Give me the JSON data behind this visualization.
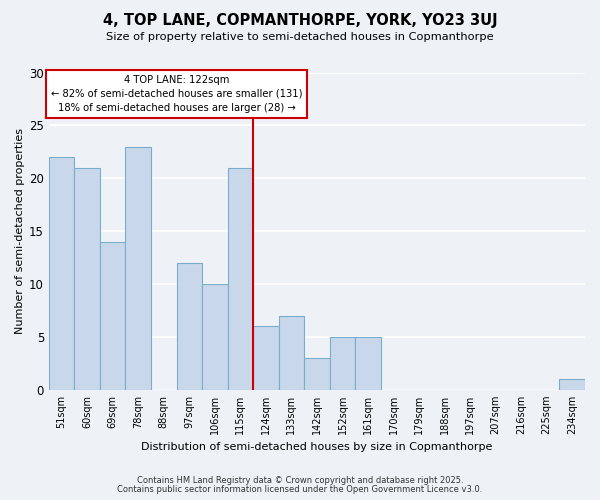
{
  "title": "4, TOP LANE, COPMANTHORPE, YORK, YO23 3UJ",
  "subtitle": "Size of property relative to semi-detached houses in Copmanthorpe",
  "xlabel": "Distribution of semi-detached houses by size in Copmanthorpe",
  "ylabel": "Number of semi-detached properties",
  "categories": [
    "51sqm",
    "60sqm",
    "69sqm",
    "78sqm",
    "88sqm",
    "97sqm",
    "106sqm",
    "115sqm",
    "124sqm",
    "133sqm",
    "142sqm",
    "152sqm",
    "161sqm",
    "170sqm",
    "179sqm",
    "188sqm",
    "197sqm",
    "207sqm",
    "216sqm",
    "225sqm",
    "234sqm"
  ],
  "values": [
    22,
    21,
    14,
    23,
    0,
    12,
    10,
    21,
    6,
    7,
    3,
    5,
    5,
    0,
    0,
    0,
    0,
    0,
    0,
    0,
    1
  ],
  "bar_color": "#c8d8ea",
  "bar_edgecolor": "#7aaccc",
  "vline_color": "#cc0000",
  "annotation_line1": "4 TOP LANE: 122sqm",
  "annotation_line2": "← 82% of semi-detached houses are smaller (131)",
  "annotation_line3": "18% of semi-detached houses are larger (28) →",
  "annotation_box_edgecolor": "#cc0000",
  "annotation_box_facecolor": "#ffffff",
  "ylim": [
    0,
    30
  ],
  "yticks": [
    0,
    5,
    10,
    15,
    20,
    25,
    30
  ],
  "background_color": "#eef2f7",
  "grid_color": "#ffffff",
  "footnote1": "Contains HM Land Registry data © Crown copyright and database right 2025.",
  "footnote2": "Contains public sector information licensed under the Open Government Licence v3.0."
}
